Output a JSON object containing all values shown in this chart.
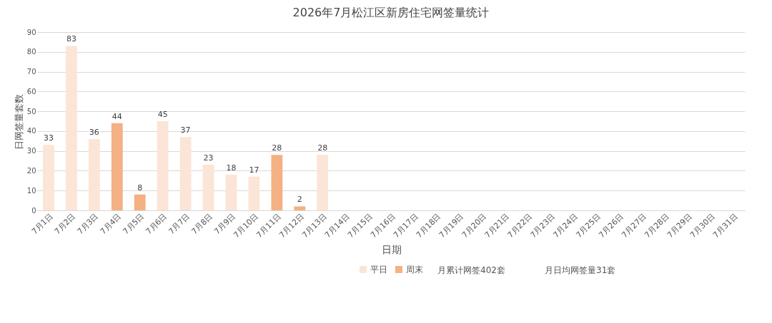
{
  "chart_data": {
    "type": "bar",
    "title": "2026年7月松江区新房住宅网签量统计",
    "xlabel": "日期",
    "ylabel": "日网签量套数",
    "categories": [
      "7月1日",
      "7月2日",
      "7月3日",
      "7月4日",
      "7月5日",
      "7月6日",
      "7月7日",
      "7月8日",
      "7月9日",
      "7月10日",
      "7月11日",
      "7月12日",
      "7月13日",
      "7月14日",
      "7月15日",
      "7月16日",
      "7月17日",
      "7月18日",
      "7月19日",
      "7月20日",
      "7月21日",
      "7月22日",
      "7月23日",
      "7月24日",
      "7月25日",
      "7月26日",
      "7月27日",
      "7月28日",
      "7月29日",
      "7月30日",
      "7月31日"
    ],
    "series": [
      {
        "name": "平日",
        "color": "#fbe5d6",
        "values": [
          33,
          83,
          36,
          null,
          null,
          45,
          37,
          23,
          18,
          17,
          null,
          null,
          28,
          null,
          null,
          null,
          null,
          null,
          null,
          null,
          null,
          null,
          null,
          null,
          null,
          null,
          null,
          null,
          null,
          null,
          null
        ]
      },
      {
        "name": "周末",
        "color": "#f4b183",
        "values": [
          null,
          null,
          null,
          44,
          8,
          null,
          null,
          null,
          null,
          null,
          28,
          2,
          null,
          null,
          null,
          null,
          null,
          null,
          null,
          null,
          null,
          null,
          null,
          null,
          null,
          null,
          null,
          null,
          null,
          null,
          null
        ]
      }
    ],
    "ylim": [
      0,
      90
    ],
    "yticks": [
      0,
      10,
      20,
      30,
      40,
      50,
      60,
      70,
      80,
      90
    ],
    "grid": "y",
    "data_labels": true,
    "legend": "bottom",
    "annotations": [
      "月累计网签402套",
      "月日均网签量31套"
    ]
  }
}
